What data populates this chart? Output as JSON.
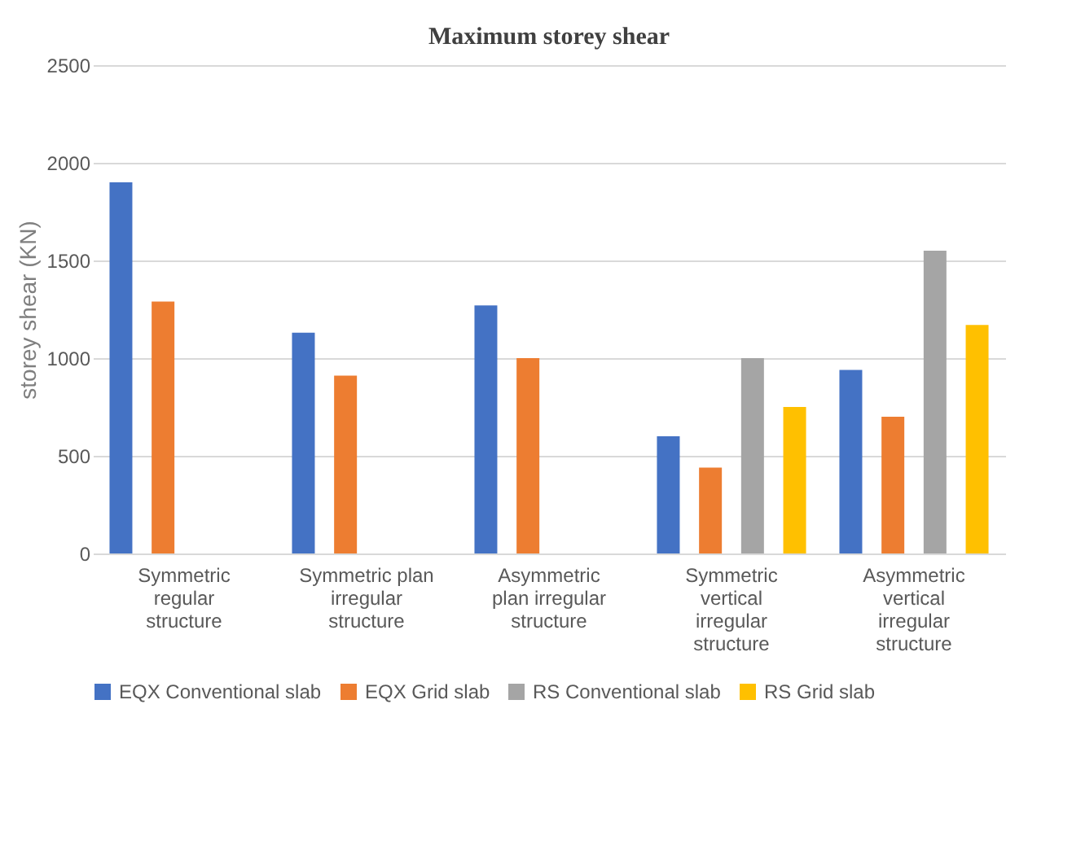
{
  "chart_data": {
    "type": "bar",
    "title": "Maximum storey shear",
    "ylabel": "storey shear (KN)",
    "categories": [
      "Symmetric\nregular\nstructure",
      "Symmetric plan\nirregular\nstructure",
      "Asymmetric\nplan  irregular\nstructure",
      "Symmetric\nvertical\nirregular\nstructure",
      "Asymmetric\nvertical\nirregular\nstructure"
    ],
    "series": [
      {
        "name": "EQX Conventional slab",
        "color": "#4472c4",
        "values": [
          1900,
          1130,
          1270,
          600,
          940
        ]
      },
      {
        "name": "EQX Grid slab",
        "color": "#ed7d31",
        "values": [
          1290,
          910,
          1000,
          440,
          700
        ]
      },
      {
        "name": "RS Conventional slab",
        "color": "#a5a5a5",
        "values": [
          null,
          null,
          null,
          1000,
          1550
        ]
      },
      {
        "name": "RS Grid slab",
        "color": "#ffc000",
        "values": [
          null,
          null,
          null,
          750,
          1170
        ]
      }
    ],
    "ylim": [
      0,
      2500
    ],
    "yticks": [
      0,
      500,
      1000,
      1500,
      2000,
      2500
    ],
    "grid": "y",
    "legend": "bottom"
  }
}
